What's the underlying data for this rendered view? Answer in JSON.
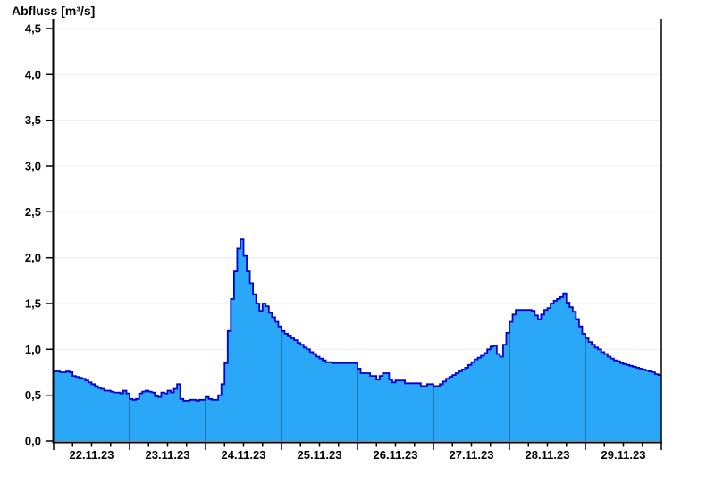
{
  "chart_data": {
    "type": "area",
    "title": "Abfluss [m³/s]",
    "x_tick_labels": [
      "22.11.23",
      "23.11.23",
      "24.11.23",
      "25.11.23",
      "26.11.23",
      "27.11.23",
      "28.11.23",
      "29.11.23"
    ],
    "y_tick_labels": [
      "0,0",
      "0,5",
      "1,0",
      "1,5",
      "2,0",
      "2,5",
      "3,0",
      "3,5",
      "4,0",
      "4,5"
    ],
    "ylim": [
      0,
      4.5
    ],
    "y_tick_step": 0.5,
    "x_minor_ticks_per_day": 4,
    "grid": "horizontal-on",
    "legend_position": "none",
    "series": [
      {
        "name": "Abfluss",
        "unit": "m³/s",
        "points_per_day": 24,
        "values": [
          0.76,
          0.76,
          0.75,
          0.75,
          0.76,
          0.75,
          0.71,
          0.7,
          0.69,
          0.68,
          0.66,
          0.64,
          0.62,
          0.6,
          0.58,
          0.57,
          0.55,
          0.55,
          0.54,
          0.53,
          0.53,
          0.52,
          0.55,
          0.52,
          0.46,
          0.45,
          0.46,
          0.52,
          0.54,
          0.55,
          0.54,
          0.53,
          0.49,
          0.48,
          0.53,
          0.52,
          0.55,
          0.53,
          0.57,
          0.62,
          0.46,
          0.44,
          0.44,
          0.45,
          0.45,
          0.44,
          0.45,
          0.45,
          0.48,
          0.46,
          0.45,
          0.45,
          0.5,
          0.62,
          0.85,
          1.2,
          1.55,
          1.85,
          2.1,
          2.2,
          2.02,
          1.85,
          1.72,
          1.6,
          1.5,
          1.42,
          1.5,
          1.47,
          1.4,
          1.35,
          1.3,
          1.25,
          1.2,
          1.17,
          1.15,
          1.12,
          1.1,
          1.07,
          1.05,
          1.02,
          1.0,
          0.97,
          0.95,
          0.92,
          0.9,
          0.88,
          0.86,
          0.86,
          0.85,
          0.85,
          0.85,
          0.85,
          0.85,
          0.85,
          0.85,
          0.85,
          0.79,
          0.74,
          0.74,
          0.74,
          0.71,
          0.71,
          0.67,
          0.71,
          0.74,
          0.74,
          0.67,
          0.64,
          0.66,
          0.66,
          0.66,
          0.63,
          0.63,
          0.63,
          0.63,
          0.63,
          0.6,
          0.6,
          0.62,
          0.62,
          0.6,
          0.6,
          0.62,
          0.65,
          0.68,
          0.7,
          0.72,
          0.74,
          0.76,
          0.78,
          0.8,
          0.83,
          0.86,
          0.89,
          0.91,
          0.93,
          0.96,
          1.0,
          1.03,
          1.04,
          0.95,
          0.92,
          1.05,
          1.18,
          1.3,
          1.38,
          1.43,
          1.43,
          1.43,
          1.43,
          1.43,
          1.42,
          1.37,
          1.33,
          1.38,
          1.43,
          1.45,
          1.5,
          1.53,
          1.55,
          1.57,
          1.61,
          1.51,
          1.46,
          1.41,
          1.33,
          1.25,
          1.17,
          1.12,
          1.08,
          1.05,
          1.02,
          1.0,
          0.97,
          0.95,
          0.92,
          0.9,
          0.88,
          0.87,
          0.85,
          0.84,
          0.83,
          0.82,
          0.81,
          0.8,
          0.79,
          0.78,
          0.77,
          0.76,
          0.75,
          0.73,
          0.72
        ]
      }
    ],
    "colors": {
      "fill": "#2aa7f7",
      "line": "#0000d0",
      "grid": "#ececec",
      "day_line": "#1b4a73",
      "axis": "#000000",
      "text": "#000000"
    }
  }
}
